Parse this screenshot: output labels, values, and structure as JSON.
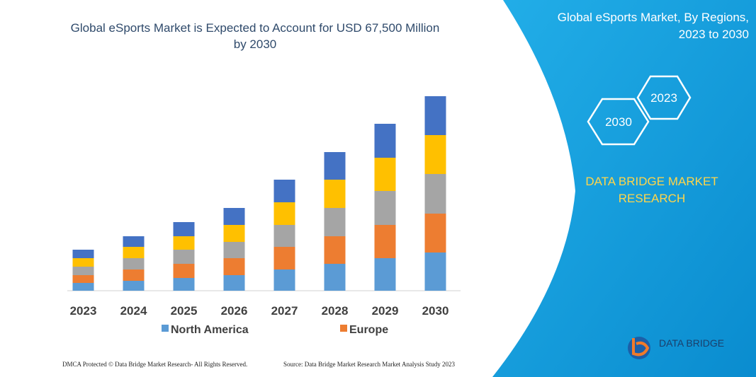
{
  "chart_data": {
    "type": "stacked-bar",
    "title": "Global eSports Market is Expected to Account for USD 67,500 Million by 2030",
    "categories": [
      "2023",
      "2024",
      "2025",
      "2026",
      "2027",
      "2028",
      "2029",
      "2030"
    ],
    "series": [
      {
        "name": "North America",
        "color": "#5b9bd5",
        "values": [
          11,
          14,
          18,
          22,
          30,
          38,
          46,
          54
        ]
      },
      {
        "name": "Europe",
        "color": "#ed7d31",
        "values": [
          11,
          16,
          20,
          24,
          32,
          39,
          47,
          55
        ]
      },
      {
        "color": "#a5a5a5",
        "values": [
          12,
          16,
          20,
          23,
          31,
          40,
          48,
          56
        ]
      },
      {
        "color": "#ffc000",
        "values": [
          12,
          16,
          19,
          24,
          32,
          40,
          47,
          55
        ]
      },
      {
        "color": "#4472c4",
        "values": [
          12,
          15,
          20,
          24,
          32,
          39,
          48,
          55
        ]
      }
    ],
    "ylim": [
      0,
      300
    ]
  },
  "panel": {
    "title": "Global eSports Market, By Regions, 2023 to 2030",
    "hex_left": "2030",
    "hex_right": "2023",
    "brand": "DATA BRIDGE MARKET RESEARCH",
    "logo": "DATA BRIDGE"
  },
  "footer": {
    "left": "DMCA Protected © Data Bridge Market Research- All Rights Reserved.",
    "right": "Source: Data Bridge Market Research Market Analysis Study 2023"
  }
}
